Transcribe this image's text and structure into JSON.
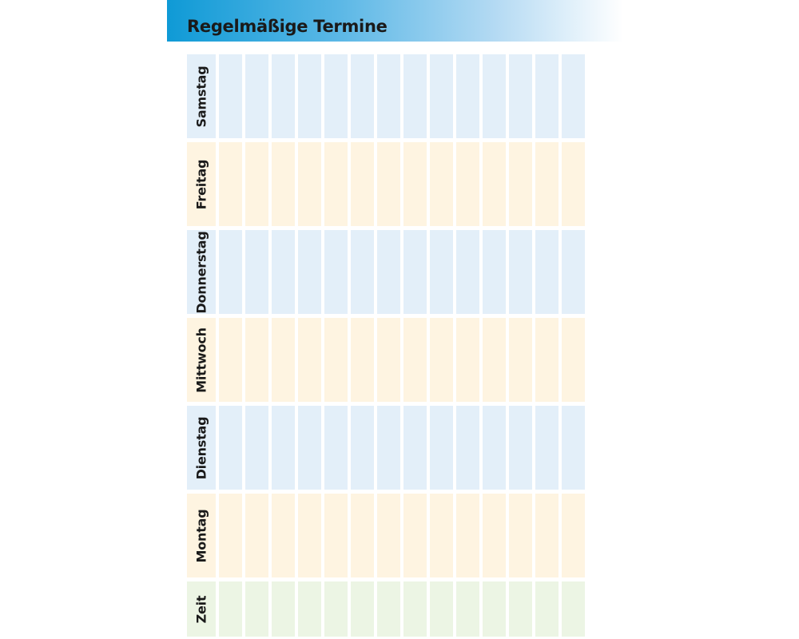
{
  "header": {
    "title": "Regelmäßige Termine"
  },
  "colors": {
    "header_gradient_start": "#0f9ad6",
    "blue_row": "#e3eff9",
    "orange_row": "#fef4e1",
    "green_row": "#ecf5e4"
  },
  "rows": [
    {
      "label": "Samstag",
      "color": "blue"
    },
    {
      "label": "Freitag",
      "color": "orange"
    },
    {
      "label": "Donnerstag",
      "color": "blue"
    },
    {
      "label": "Mittwoch",
      "color": "orange"
    },
    {
      "label": "Dienstag",
      "color": "blue"
    },
    {
      "label": "Montag",
      "color": "orange"
    },
    {
      "label": "Zeit",
      "color": "green"
    }
  ],
  "slots_per_row": 14
}
